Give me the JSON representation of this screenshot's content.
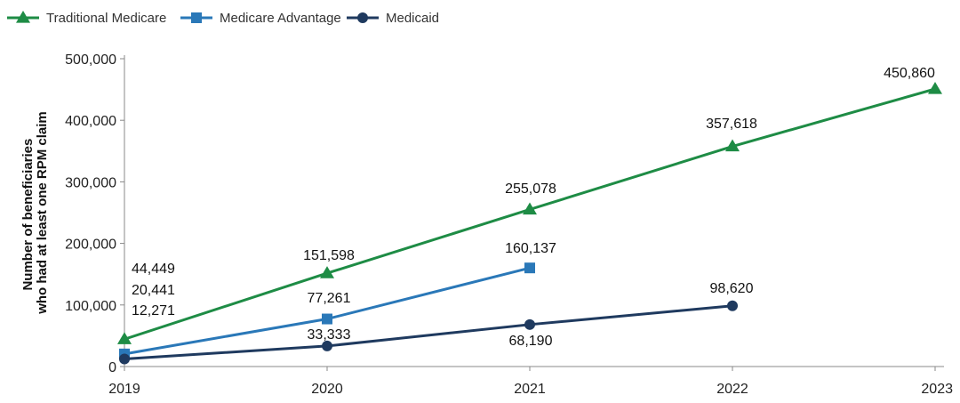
{
  "chart_data": {
    "type": "line",
    "title": "",
    "xlabel": "",
    "ylabel_line1": "Number of beneficiaries",
    "ylabel_line2": "who had at least one RPM claim",
    "x": [
      "2019",
      "2020",
      "2021",
      "2022",
      "2023"
    ],
    "ylim": [
      0,
      500000
    ],
    "yticks": [
      0,
      100000,
      200000,
      300000,
      400000,
      500000
    ],
    "ytick_labels": [
      "0",
      "100,000",
      "200,000",
      "300,000",
      "400,000",
      "500,000"
    ],
    "grid": false,
    "legend_position": "top-left",
    "series": [
      {
        "name": "Traditional Medicare",
        "marker": "triangle",
        "color": "#1e8c45",
        "values": [
          44449,
          151598,
          255078,
          357618,
          450860
        ],
        "labels": [
          "44,449",
          "151,598",
          "255,078",
          "357,618",
          "450,860"
        ]
      },
      {
        "name": "Medicare Advantage",
        "marker": "square",
        "color": "#2a78b8",
        "values": [
          20441,
          77261,
          160137,
          null,
          null
        ],
        "labels": [
          "20,441",
          "77,261",
          "160,137",
          "",
          ""
        ]
      },
      {
        "name": "Medicaid",
        "marker": "circle",
        "color": "#1f3a5f",
        "values": [
          12271,
          33333,
          68190,
          98620,
          null
        ],
        "labels": [
          "12,271",
          "33,333",
          "68,190",
          "98,620",
          ""
        ]
      }
    ]
  }
}
